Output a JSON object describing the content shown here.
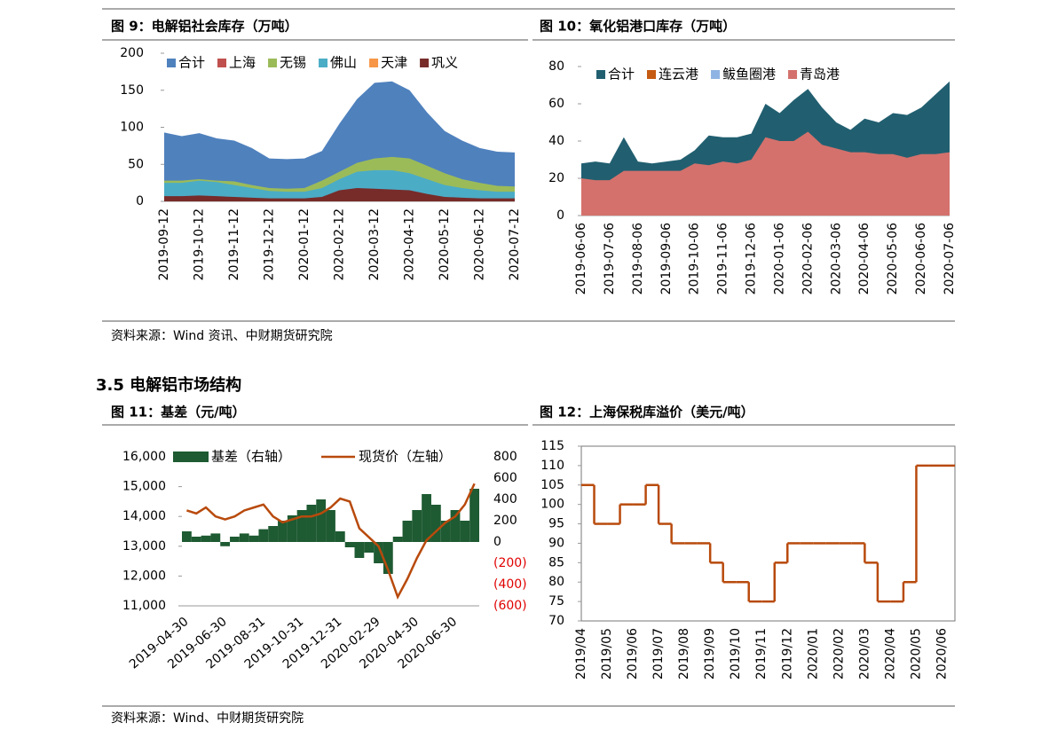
{
  "document": {
    "section_heading": "3.5 电解铝市场结构",
    "sources": [
      "资料来源：Wind 资讯、中财期货研究院",
      "资料来源：Wind、中财期货研究院"
    ]
  },
  "chart_data": [
    {
      "type": "area",
      "title": "图 9：电解铝社会库存（万吨）",
      "categories": [
        "2019-09-12",
        null,
        "2019-10-12",
        null,
        "2019-11-12",
        null,
        "2019-12-12",
        null,
        "2020-01-12",
        null,
        "2020-02-12",
        null,
        "2020-03-12",
        null,
        "2020-04-12",
        null,
        "2020-05-12",
        null,
        "2020-06-12",
        null,
        "2020-07-12"
      ],
      "series": [
        {
          "name": "合计",
          "color": "#4f81bd",
          "values": [
            93,
            88,
            92,
            85,
            82,
            72,
            58,
            57,
            58,
            68,
            105,
            138,
            160,
            162,
            150,
            120,
            95,
            82,
            72,
            67,
            66
          ]
        },
        {
          "name": "上海",
          "color": "#c0504d",
          "values": [
            10,
            10,
            10,
            9,
            8,
            7,
            6,
            6,
            6,
            8,
            12,
            15,
            16,
            16,
            14,
            12,
            10,
            8,
            7,
            6,
            6
          ]
        },
        {
          "name": "无锡",
          "color": "#9bbb59",
          "values": [
            28,
            28,
            30,
            28,
            27,
            22,
            18,
            17,
            18,
            28,
            40,
            52,
            58,
            60,
            58,
            48,
            38,
            30,
            25,
            21,
            20
          ]
        },
        {
          "name": "佛山",
          "color": "#4bacc6",
          "values": [
            25,
            25,
            28,
            26,
            22,
            18,
            14,
            13,
            13,
            18,
            30,
            40,
            42,
            42,
            38,
            30,
            22,
            18,
            15,
            13,
            13
          ]
        },
        {
          "name": "天津",
          "color": "#f79646",
          "values": [
            3,
            3,
            3,
            3,
            3,
            2,
            2,
            2,
            2,
            3,
            4,
            5,
            5,
            5,
            5,
            4,
            3,
            3,
            3,
            2,
            2
          ]
        },
        {
          "name": "巩义",
          "color": "#772c2a",
          "values": [
            7,
            7,
            8,
            7,
            6,
            5,
            4,
            4,
            4,
            6,
            15,
            18,
            17,
            16,
            15,
            10,
            6,
            5,
            4,
            4,
            4
          ]
        }
      ],
      "ylim": [
        0,
        200
      ],
      "yticks": [
        0,
        50,
        100,
        150,
        200
      ]
    },
    {
      "type": "area",
      "title": "图 10：氧化铝港口库存（万吨）",
      "categories": [
        "2019-06-06",
        null,
        "2019-07-06",
        null,
        "2019-08-06",
        null,
        "2019-09-06",
        null,
        "2019-10-06",
        null,
        "2019-11-06",
        null,
        "2019-12-06",
        null,
        "2020-01-06",
        null,
        "2020-02-06",
        null,
        "2020-03-06",
        null,
        "2020-04-06",
        null,
        "2020-05-06",
        null,
        "2020-06-06",
        null,
        "2020-07-06"
      ],
      "series": [
        {
          "name": "合计",
          "color": "#215f70",
          "values": [
            28,
            29,
            28,
            42,
            29,
            28,
            29,
            30,
            35,
            43,
            42,
            42,
            44,
            60,
            55,
            62,
            68,
            58,
            50,
            46,
            52,
            50,
            55,
            54,
            58,
            65,
            72
          ]
        },
        {
          "name": "连云港",
          "color": "#c55a11",
          "values": [
            3,
            3,
            3,
            3,
            3,
            3,
            3,
            3,
            3,
            3,
            3,
            3,
            3,
            3,
            3,
            3,
            3,
            3,
            3,
            3,
            3,
            3,
            3,
            3,
            3,
            3,
            3
          ]
        },
        {
          "name": "鲅鱼圈港",
          "color": "#8eb4e3",
          "values": [
            2,
            2,
            2,
            2,
            2,
            2,
            2,
            2,
            2,
            2,
            2,
            2,
            2,
            2,
            2,
            2,
            2,
            2,
            2,
            2,
            2,
            2,
            2,
            2,
            2,
            2,
            2
          ]
        },
        {
          "name": "青岛港",
          "color": "#d4716c",
          "values": [
            20,
            19,
            19,
            24,
            24,
            24,
            24,
            24,
            28,
            27,
            29,
            28,
            30,
            42,
            40,
            40,
            45,
            38,
            36,
            34,
            34,
            33,
            33,
            31,
            33,
            33,
            34
          ]
        }
      ],
      "ylim": [
        0,
        80
      ],
      "yticks": [
        0,
        20,
        40,
        60,
        80
      ]
    },
    {
      "type": "bar",
      "title": "图 11：基差（元/吨）",
      "categories": [
        "2019-04-30",
        null,
        null,
        null,
        "2019-06-30",
        null,
        null,
        null,
        "2019-08-31",
        null,
        null,
        null,
        "2019-10-31",
        null,
        null,
        null,
        "2019-12-31",
        null,
        null,
        null,
        "2020-02-29",
        null,
        null,
        null,
        "2020-04-30",
        null,
        null,
        null,
        "2020-06-30",
        null,
        null
      ],
      "series": [
        {
          "name": "基差（右轴）",
          "type": "bar",
          "axis": "y2",
          "color": "#1e5a32",
          "values": [
            100,
            50,
            60,
            80,
            -40,
            50,
            80,
            60,
            120,
            150,
            200,
            250,
            300,
            350,
            400,
            300,
            100,
            -50,
            -150,
            -100,
            -200,
            -300,
            50,
            200,
            300,
            450,
            350,
            200,
            300,
            200,
            500
          ]
        },
        {
          "name": "现货价（左轴）",
          "type": "line",
          "color": "#b84a0c",
          "values": [
            14200,
            14100,
            14300,
            14000,
            13900,
            14000,
            14200,
            14300,
            14400,
            14000,
            13800,
            13900,
            14000,
            14000,
            14100,
            14300,
            14600,
            14500,
            13600,
            13300,
            13000,
            12200,
            11300,
            11900,
            12600,
            13200,
            13500,
            13800,
            14000,
            14400,
            15100
          ]
        }
      ],
      "ylim": [
        11000,
        16000
      ],
      "yticks": [
        {
          "value": 11000,
          "label": "11,000"
        },
        {
          "value": 12000,
          "label": "12,000"
        },
        {
          "value": 13000,
          "label": "13,000"
        },
        {
          "value": 14000,
          "label": "14,000"
        },
        {
          "value": 15000,
          "label": "15,000"
        },
        {
          "value": 16000,
          "label": "16,000"
        }
      ],
      "y2lim": [
        -600,
        800
      ],
      "y2ticks": [
        800,
        600,
        400,
        200,
        0,
        {
          "value": -200,
          "label": "(200)"
        },
        {
          "value": -400,
          "label": "(400)"
        },
        {
          "value": -600,
          "label": "(600)"
        }
      ],
      "y2_negative_tick_color": "#e00000"
    },
    {
      "type": "line",
      "title": "图 12：上海保税库溢价（美元/吨）",
      "step": true,
      "color": "#b84a0c",
      "categories": [
        "2019/04",
        null,
        "2019/05",
        null,
        "2019/06",
        null,
        "2019/07",
        null,
        "2019/08",
        null,
        "2019/09",
        null,
        "2019/10",
        null,
        "2019/11",
        null,
        "2019/12",
        null,
        "2020/01",
        null,
        "2020/02",
        null,
        "2020/03",
        null,
        "2020/04",
        null,
        "2020/05",
        null,
        "2020/06",
        null
      ],
      "values": [
        105,
        95,
        95,
        100,
        100,
        105,
        95,
        90,
        90,
        90,
        85,
        80,
        80,
        75,
        75,
        85,
        90,
        90,
        90,
        90,
        90,
        90,
        85,
        75,
        75,
        80,
        110,
        110,
        110,
        110
      ],
      "ylim": [
        70,
        115
      ],
      "yticks": [
        70,
        75,
        80,
        85,
        90,
        95,
        100,
        105,
        110,
        115
      ]
    }
  ]
}
